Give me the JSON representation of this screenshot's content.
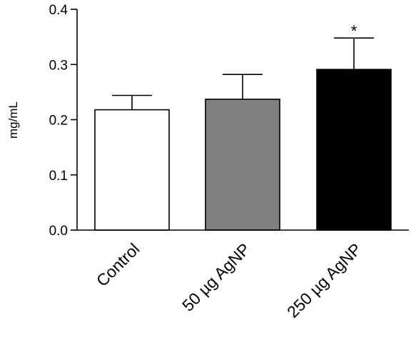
{
  "chart_data": {
    "type": "bar",
    "title": "",
    "xlabel": "",
    "ylabel": "mg/mL",
    "ylim": [
      0,
      0.4
    ],
    "yticks": [
      "0.0",
      "0.1",
      "0.2",
      "0.3",
      "0.4"
    ],
    "grid": false,
    "categories": [
      "Control",
      "50 µg AgNP",
      "250 µg AgNP"
    ],
    "values": [
      0.218,
      0.237,
      0.291
    ],
    "errors": [
      0.026,
      0.045,
      0.057
    ],
    "colors": [
      "#ffffff",
      "#808080",
      "#000000"
    ],
    "annotations": [
      "",
      "",
      "*"
    ]
  }
}
